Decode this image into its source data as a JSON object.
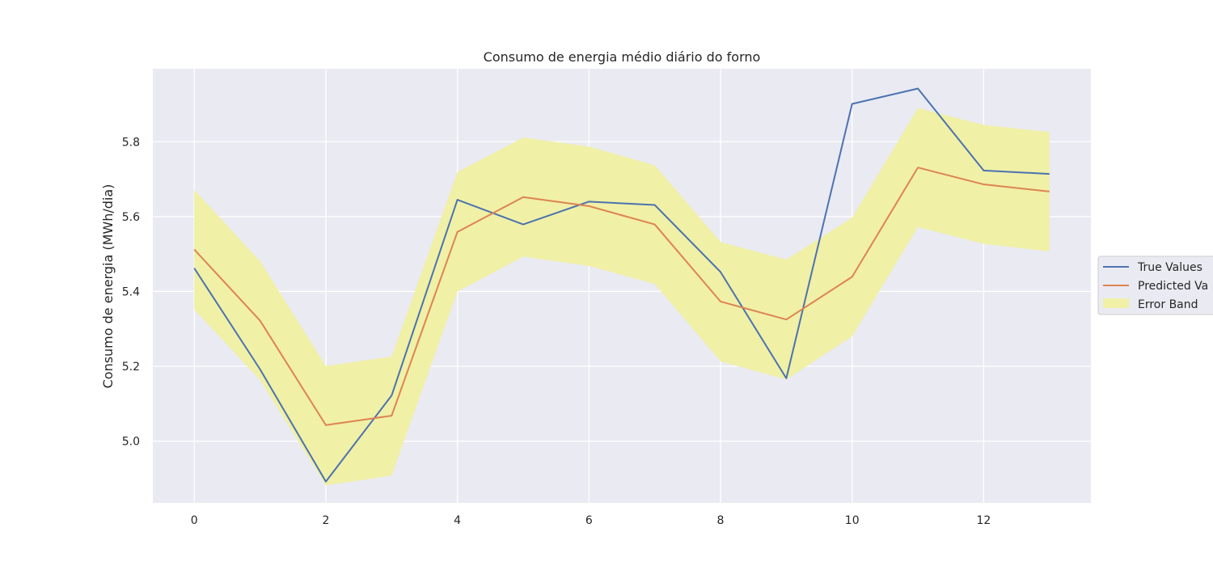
{
  "chart_data": {
    "type": "line",
    "title": "Consumo de energia médio diário do forno",
    "xlabel": "",
    "ylabel": "Consumo de energia (MWh/dia)",
    "x": [
      0,
      1,
      2,
      3,
      4,
      5,
      6,
      7,
      8,
      9,
      10,
      11,
      12,
      13
    ],
    "xlim": [
      -0.63,
      13.63
    ],
    "ylim": [
      4.835,
      5.995
    ],
    "xticks": [
      0,
      2,
      4,
      6,
      8,
      10,
      12
    ],
    "yticks": [
      5.0,
      5.2,
      5.4,
      5.6,
      5.8
    ],
    "ytick_labels": [
      "5.0",
      "5.2",
      "5.4",
      "5.6",
      "5.8"
    ],
    "grid": true,
    "legend_position": "right, outside plot area (clipped)",
    "series": [
      {
        "name": "True Values",
        "color": "#4c72b0",
        "values": [
          5.462,
          5.192,
          4.892,
          5.122,
          5.645,
          5.579,
          5.64,
          5.631,
          5.452,
          5.168,
          5.901,
          5.942,
          5.723,
          5.714
        ]
      },
      {
        "name": "Predicted Va",
        "color": "#dd8452",
        "values": [
          5.512,
          5.322,
          5.043,
          5.068,
          5.559,
          5.652,
          5.628,
          5.579,
          5.373,
          5.325,
          5.439,
          5.731,
          5.686,
          5.667
        ]
      }
    ],
    "band": {
      "name": "Error Band",
      "color": "#f0f0a6",
      "upper": [
        5.671,
        5.481,
        5.201,
        5.226,
        5.719,
        5.811,
        5.787,
        5.737,
        5.532,
        5.485,
        5.597,
        5.89,
        5.845,
        5.826
      ],
      "lower": [
        5.352,
        5.163,
        4.882,
        4.908,
        5.4,
        5.493,
        5.468,
        5.42,
        5.213,
        5.165,
        5.28,
        5.572,
        5.527,
        5.507
      ]
    },
    "legend_entries": [
      "True Values",
      "Predicted Va",
      "Error Band"
    ]
  },
  "colors": {
    "plot_background": "#eaeaf2",
    "grid": "#ffffff",
    "text": "#262626"
  }
}
